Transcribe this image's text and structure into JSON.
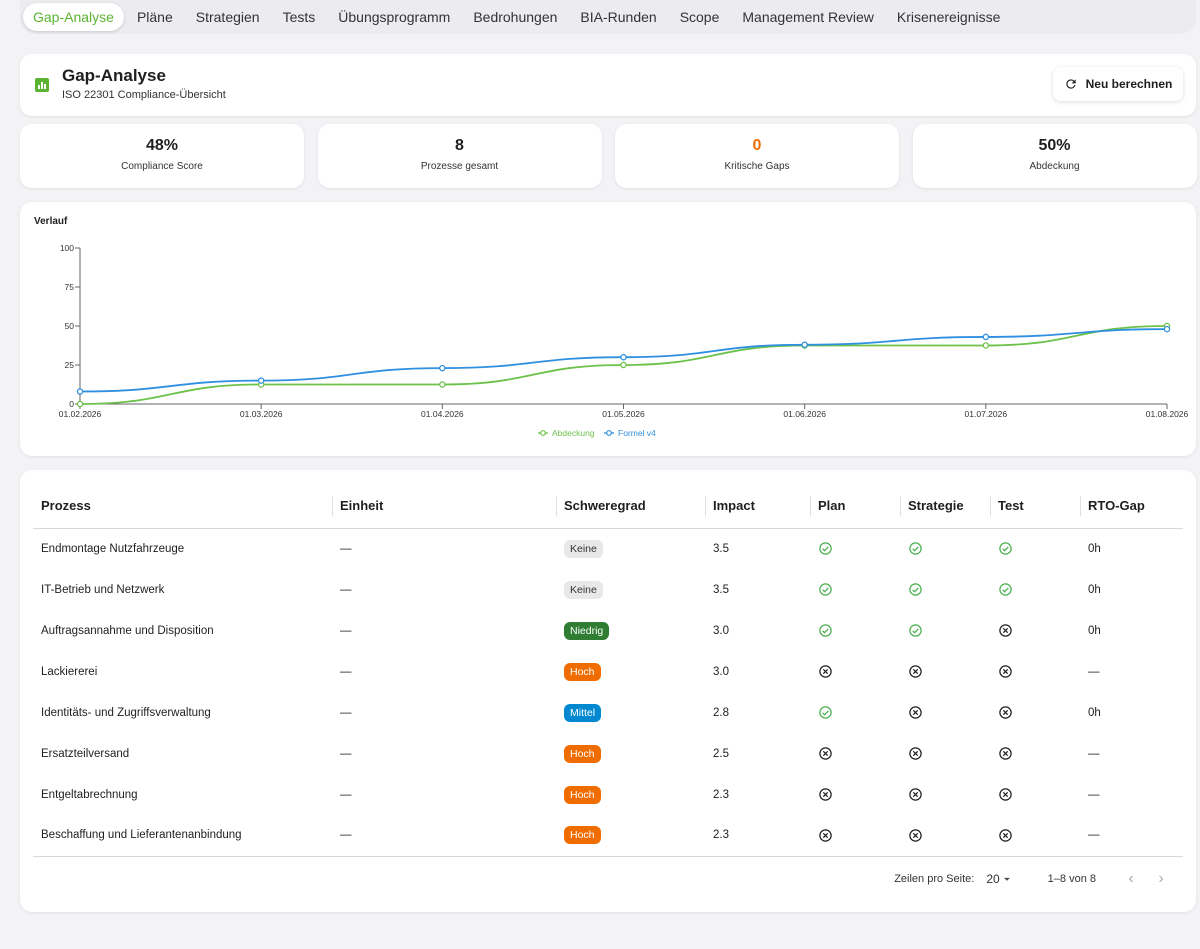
{
  "tabs": [
    {
      "label": "Gap-Analyse",
      "active": true
    },
    {
      "label": "Pläne",
      "active": false
    },
    {
      "label": "Strategien",
      "active": false
    },
    {
      "label": "Tests",
      "active": false
    },
    {
      "label": "Übungsprogramm",
      "active": false
    },
    {
      "label": "Bedrohungen",
      "active": false
    },
    {
      "label": "BIA-Runden",
      "active": false
    },
    {
      "label": "Scope",
      "active": false
    },
    {
      "label": "Management Review",
      "active": false
    },
    {
      "label": "Krisenereignisse",
      "active": false
    }
  ],
  "header": {
    "title": "Gap-Analyse",
    "subtitle": "ISO 22301 Compliance-Übersicht",
    "recalc_label": "Neu berechnen",
    "icon": "bar-chart-icon"
  },
  "stats": [
    {
      "value": "48%",
      "label": "Compliance Score",
      "color": "#1f1f1f"
    },
    {
      "value": "8",
      "label": "Prozesse gesamt",
      "color": "#1f1f1f"
    },
    {
      "value": "0",
      "label": "Kritische Gaps",
      "color": "#ef6c00"
    },
    {
      "value": "50%",
      "label": "Abdeckung",
      "color": "#1f1f1f"
    }
  ],
  "chart_data": {
    "type": "line",
    "title": "Verlauf",
    "x": [
      "01.02.2026",
      "01.03.2026",
      "01.04.2026",
      "01.05.2026",
      "01.06.2026",
      "01.07.2026",
      "01.08.2026"
    ],
    "ylim": [
      0,
      100
    ],
    "yticks": [
      "0",
      "25",
      "50",
      "75",
      "100"
    ],
    "series": [
      {
        "name": "Abdeckung",
        "color": "#6cc24a",
        "values": [
          0,
          12.5,
          12.5,
          25,
          37.5,
          37.5,
          50
        ]
      },
      {
        "name": "Formel v4",
        "color": "#2f8fe0",
        "values": [
          8,
          15,
          23,
          30,
          38,
          43,
          48
        ]
      }
    ],
    "legend": "bottom"
  },
  "table": {
    "columns": [
      "Prozess",
      "Einheit",
      "Schweregrad",
      "Impact",
      "Plan",
      "Strategie",
      "Test",
      "RTO-Gap"
    ],
    "rows": [
      {
        "prozess": "Endmontage Nutzfahrzeuge",
        "einheit": "—",
        "schweregrad": "Keine",
        "sev": "keine",
        "impact": "3.5",
        "plan": true,
        "strategie": true,
        "test": true,
        "rto": "0h"
      },
      {
        "prozess": "IT-Betrieb und Netzwerk",
        "einheit": "—",
        "schweregrad": "Keine",
        "sev": "keine",
        "impact": "3.5",
        "plan": true,
        "strategie": true,
        "test": true,
        "rto": "0h"
      },
      {
        "prozess": "Auftragsannahme und Disposition",
        "einheit": "—",
        "schweregrad": "Niedrig",
        "sev": "niedrig",
        "impact": "3.0",
        "plan": true,
        "strategie": true,
        "test": false,
        "rto": "0h"
      },
      {
        "prozess": "Lackiererei",
        "einheit": "—",
        "schweregrad": "Hoch",
        "sev": "hoch",
        "impact": "3.0",
        "plan": false,
        "strategie": false,
        "test": false,
        "rto": "—"
      },
      {
        "prozess": "Identitäts- und Zugriffsverwaltung",
        "einheit": "—",
        "schweregrad": "Mittel",
        "sev": "mittel",
        "impact": "2.8",
        "plan": true,
        "strategie": false,
        "test": false,
        "rto": "0h"
      },
      {
        "prozess": "Ersatzteilversand",
        "einheit": "—",
        "schweregrad": "Hoch",
        "sev": "hoch",
        "impact": "2.5",
        "plan": false,
        "strategie": false,
        "test": false,
        "rto": "—"
      },
      {
        "prozess": "Entgeltabrechnung",
        "einheit": "—",
        "schweregrad": "Hoch",
        "sev": "hoch",
        "impact": "2.3",
        "plan": false,
        "strategie": false,
        "test": false,
        "rto": "—"
      },
      {
        "prozess": "Beschaffung und Lieferantenanbindung",
        "einheit": "—",
        "schweregrad": "Hoch",
        "sev": "hoch",
        "impact": "2.3",
        "plan": false,
        "strategie": false,
        "test": false,
        "rto": "—"
      }
    ]
  },
  "pagination": {
    "rows_per_page_label": "Zeilen pro Seite:",
    "rows_per_page": "20",
    "range": "1–8 von 8"
  }
}
